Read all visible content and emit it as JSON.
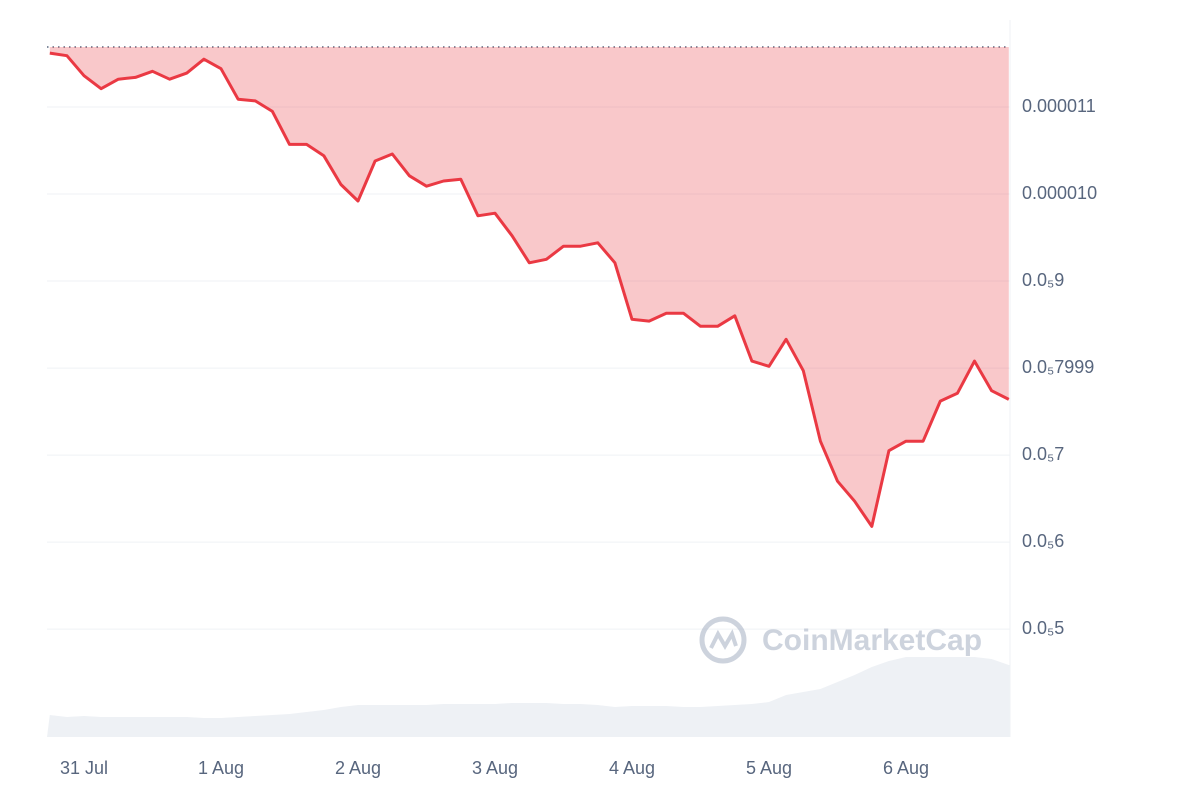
{
  "chart_data": {
    "type": "line",
    "color": "#ea3943",
    "volume_color": "#eef1f5",
    "grid": true,
    "baseline": 1.169e-05,
    "watermark": "CoinMarketCap",
    "categories": [
      null,
      null,
      "31 Jul",
      null,
      null,
      null,
      null,
      null,
      null,
      null,
      "1 Aug",
      null,
      null,
      null,
      null,
      null,
      null,
      null,
      "2 Aug",
      null,
      null,
      null,
      null,
      null,
      null,
      null,
      "3 Aug",
      null,
      null,
      null,
      null,
      null,
      null,
      null,
      "4 Aug",
      null,
      null,
      null,
      null,
      null,
      null,
      null,
      "5 Aug",
      null,
      null,
      null,
      null,
      null,
      null,
      null,
      "6 Aug",
      null,
      null,
      null,
      null,
      null,
      null
    ],
    "values": [
      1.162e-05,
      1.159e-05,
      1.136e-05,
      1.121e-05,
      1.132e-05,
      1.134e-05,
      1.141e-05,
      1.132e-05,
      1.139e-05,
      1.155e-05,
      1.144e-05,
      1.109e-05,
      1.107e-05,
      1.095e-05,
      1.057e-05,
      1.057e-05,
      1.044e-05,
      1.011e-05,
      9.92e-06,
      1.038e-05,
      1.046e-05,
      1.021e-05,
      1.009e-05,
      1.015e-05,
      1.017e-05,
      9.75e-06,
      9.78e-06,
      9.52e-06,
      9.21e-06,
      9.25e-06,
      9.4e-06,
      9.4e-06,
      9.44e-06,
      9.21e-06,
      8.56e-06,
      8.54e-06,
      8.63e-06,
      8.63e-06,
      8.48e-06,
      8.48e-06,
      8.6e-06,
      8.08e-06,
      8.02e-06,
      8.33e-06,
      7.97e-06,
      7.16e-06,
      6.7e-06,
      6.47e-06,
      6.18e-06,
      7.05e-06,
      7.16e-06,
      7.16e-06,
      7.62e-06,
      7.71e-06,
      8.08e-06,
      7.74e-06,
      7.64e-06
    ],
    "volume": [
      22,
      20,
      21,
      20,
      20,
      20,
      20,
      20,
      20,
      19,
      19,
      20,
      21,
      22,
      23,
      25,
      27,
      30,
      32,
      32,
      32,
      32,
      32,
      33,
      33,
      33,
      33,
      34,
      34,
      34,
      33,
      33,
      32,
      30,
      31,
      31,
      31,
      30,
      30,
      31,
      32,
      33,
      35,
      42,
      45,
      48,
      55,
      62,
      70,
      76,
      80,
      80,
      80,
      80,
      80,
      78,
      72
    ],
    "ylim": [
      3.76e-06,
      1.2e-05
    ],
    "yticks": [
      {
        "value": 1.1e-05,
        "label": "0.000011"
      },
      {
        "value": 1e-05,
        "label": "0.000010"
      },
      {
        "value": 9e-06,
        "label": "0.0₅9"
      },
      {
        "value": 7.999e-06,
        "label": "0.0₅7999"
      },
      {
        "value": 7e-06,
        "label": "0.0₅7"
      },
      {
        "value": 6e-06,
        "label": "0.0₅6"
      },
      {
        "value": 5e-06,
        "label": "0.0₅5"
      }
    ]
  }
}
